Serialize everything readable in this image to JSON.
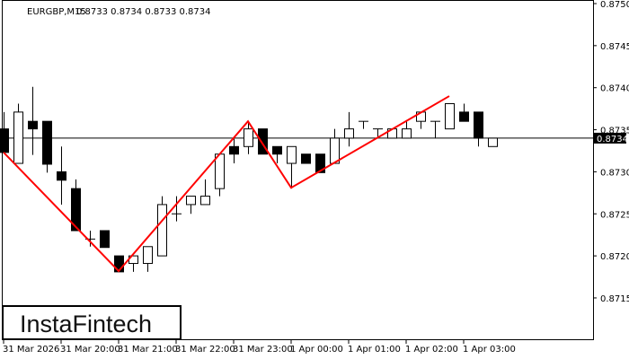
{
  "header": {
    "symbol": "EURGBP,M15",
    "ohlc": "0.8733 0.8734 0.8733 0.8734"
  },
  "logo": "InstaFintech",
  "colors": {
    "bull_fill": "#ffffff",
    "bear_fill": "#000000",
    "pattern_line": "#ff0000",
    "current_price_label_bg": "#000000"
  },
  "current_price": "0.8734",
  "chart_data": {
    "type": "candlestick",
    "symbol": "EURGBP",
    "timeframe": "M15",
    "ylim": [
      0.871,
      0.875
    ],
    "y_ticks": [
      "0.8750",
      "0.8745",
      "0.8740",
      "0.8735",
      "0.8730",
      "0.8725",
      "0.8720",
      "0.8715"
    ],
    "x_ticks": [
      {
        "index": 0,
        "label": "31 Mar 2026"
      },
      {
        "index": 4,
        "label": "31 Mar 20:00"
      },
      {
        "index": 8,
        "label": "31 Mar 21:00"
      },
      {
        "index": 12,
        "label": "31 Mar 22:00"
      },
      {
        "index": 16,
        "label": "31 Mar 23:00"
      },
      {
        "index": 20,
        "label": "1 Apr 00:00"
      },
      {
        "index": 24,
        "label": "1 Apr 01:00"
      },
      {
        "index": 28,
        "label": "1 Apr 02:00"
      },
      {
        "index": 32,
        "label": "1 Apr 03:00"
      }
    ],
    "candles": [
      [
        0.87351,
        0.87371,
        0.87323,
        0.87323
      ],
      [
        0.8731,
        0.87381,
        0.8731,
        0.87371
      ],
      [
        0.8736,
        0.87401,
        0.8732,
        0.87351
      ],
      [
        0.8736,
        0.8736,
        0.87299,
        0.87309
      ],
      [
        0.873,
        0.8733,
        0.87261,
        0.8729
      ],
      [
        0.8728,
        0.87291,
        0.8723,
        0.8723
      ],
      [
        0.8722,
        0.8723,
        0.87211,
        0.8722
      ],
      [
        0.8723,
        0.8723,
        0.8721,
        0.8721
      ],
      [
        0.872,
        0.872,
        0.87181,
        0.87181
      ],
      [
        0.87191,
        0.872,
        0.87181,
        0.872
      ],
      [
        0.87191,
        0.87211,
        0.87181,
        0.87211
      ],
      [
        0.872,
        0.87271,
        0.872,
        0.87261
      ],
      [
        0.8725,
        0.87271,
        0.87241,
        0.8725
      ],
      [
        0.87261,
        0.87271,
        0.8725,
        0.87271
      ],
      [
        0.87261,
        0.87291,
        0.87261,
        0.87271
      ],
      [
        0.8728,
        0.87321,
        0.87271,
        0.87321
      ],
      [
        0.8733,
        0.8734,
        0.8731,
        0.87321
      ],
      [
        0.8733,
        0.8736,
        0.87321,
        0.87351
      ],
      [
        0.87351,
        0.87351,
        0.87321,
        0.87321
      ],
      [
        0.8733,
        0.8733,
        0.8731,
        0.87321
      ],
      [
        0.8731,
        0.8733,
        0.8728,
        0.8733
      ],
      [
        0.87321,
        0.87321,
        0.8731,
        0.8731
      ],
      [
        0.87321,
        0.87321,
        0.87299,
        0.87299
      ],
      [
        0.8731,
        0.87351,
        0.8731,
        0.8734
      ],
      [
        0.8734,
        0.87371,
        0.8733,
        0.87351
      ],
      [
        0.8736,
        0.8736,
        0.87351,
        0.8736
      ],
      [
        0.87351,
        0.87351,
        0.8734,
        0.87351
      ],
      [
        0.8734,
        0.87351,
        0.8734,
        0.87351
      ],
      [
        0.8734,
        0.8736,
        0.8734,
        0.87351
      ],
      [
        0.8736,
        0.87371,
        0.87351,
        0.87371
      ],
      [
        0.8736,
        0.8736,
        0.8734,
        0.8736
      ],
      [
        0.87351,
        0.87381,
        0.87351,
        0.87381
      ],
      [
        0.87371,
        0.87381,
        0.8736,
        0.8736
      ],
      [
        0.87371,
        0.87371,
        0.8733,
        0.8734
      ],
      [
        0.8733,
        0.8734,
        0.8733,
        0.8734
      ]
    ],
    "candle_fields": [
      "open",
      "high",
      "low",
      "close"
    ],
    "pattern_line": [
      {
        "index": 0,
        "price": 0.87323
      },
      {
        "index": 8,
        "price": 0.87182
      },
      {
        "index": 17,
        "price": 0.8736
      },
      {
        "index": 20,
        "price": 0.87281
      },
      {
        "index": 31,
        "price": 0.8739
      }
    ]
  }
}
